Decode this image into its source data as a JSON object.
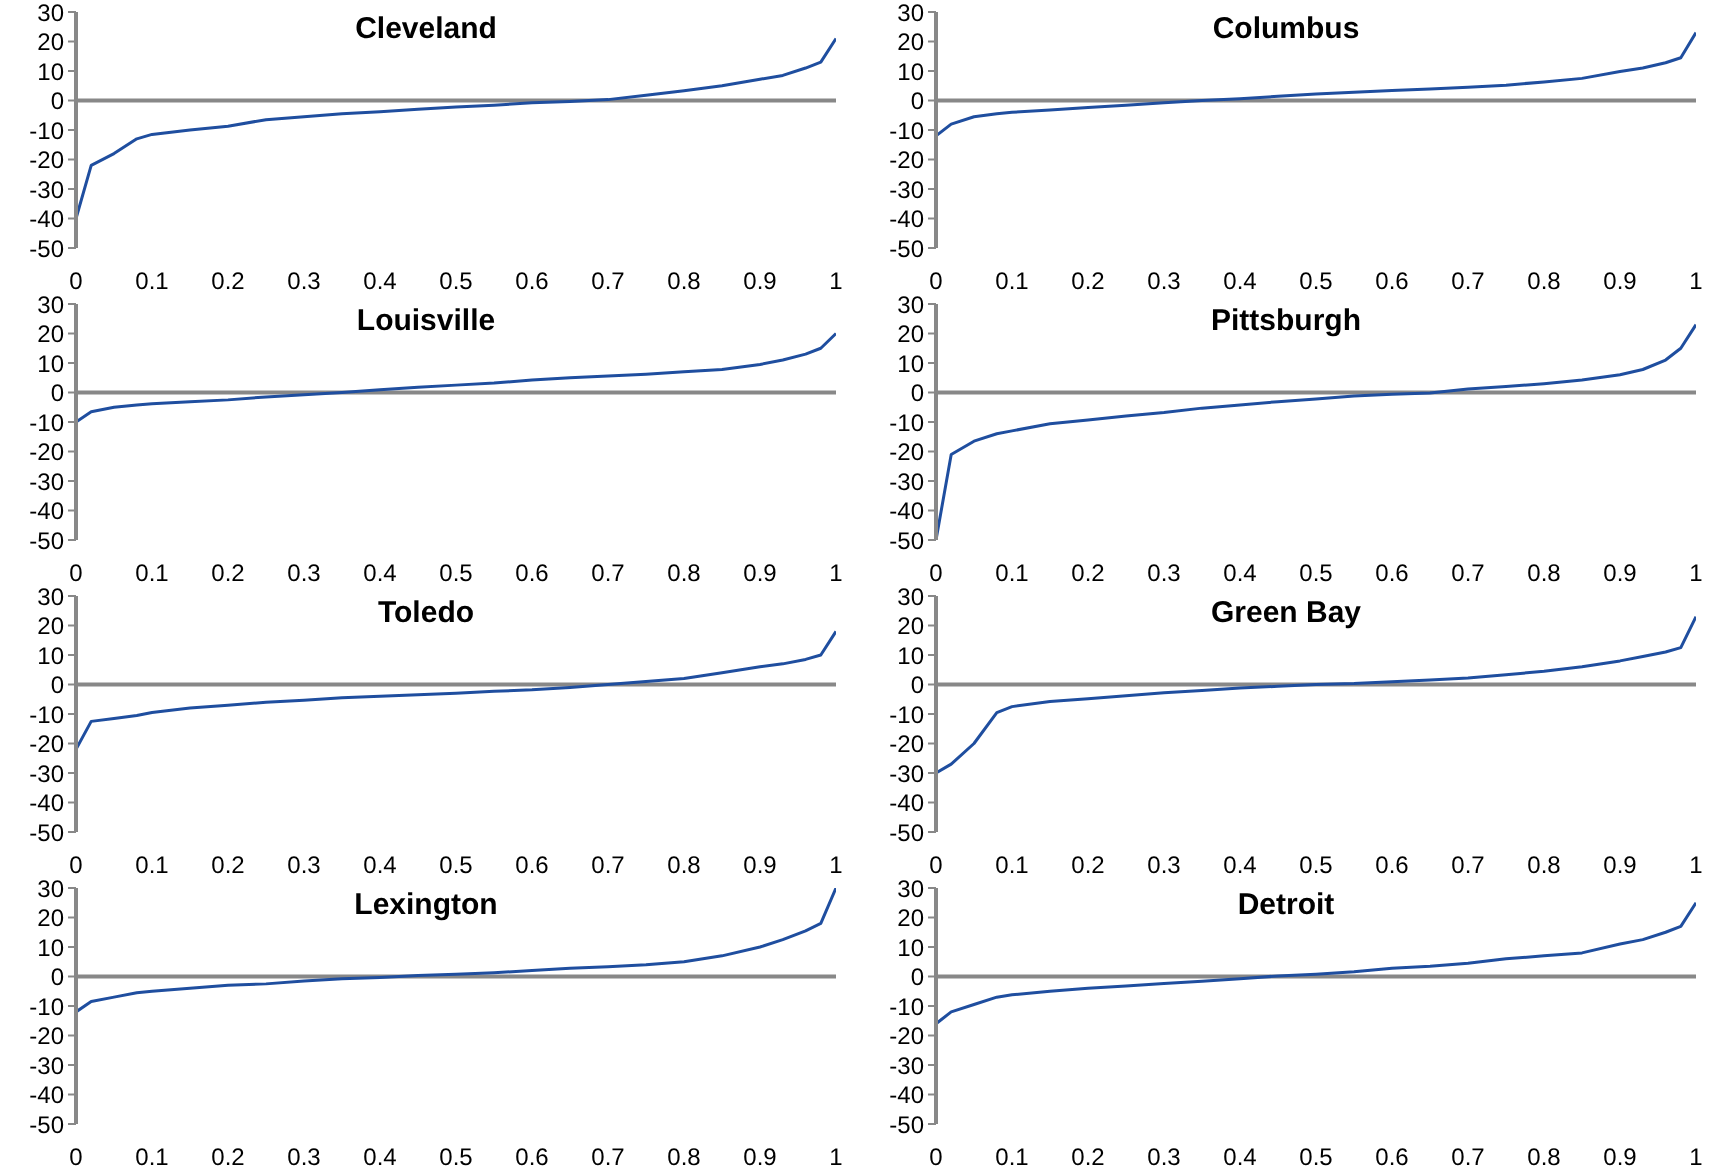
{
  "chart_data": [
    {
      "type": "line",
      "title": "Cleveland",
      "x": [
        0,
        0.02,
        0.05,
        0.08,
        0.1,
        0.15,
        0.2,
        0.25,
        0.3,
        0.35,
        0.4,
        0.45,
        0.5,
        0.55,
        0.6,
        0.65,
        0.7,
        0.75,
        0.8,
        0.85,
        0.9,
        0.93,
        0.96,
        0.98,
        1
      ],
      "values": [
        -40,
        -22,
        -18,
        -13,
        -11.5,
        -10,
        -8.7,
        -6.5,
        -5.5,
        -4.5,
        -3.8,
        -3,
        -2.2,
        -1.6,
        -0.8,
        -0.3,
        0.3,
        1.8,
        3.3,
        5,
        7.2,
        8.5,
        11,
        13,
        21
      ],
      "color": "#1f4e9f",
      "xlim": [
        0,
        1
      ],
      "ylim": [
        -50,
        30
      ],
      "xticks": [
        0,
        0.1,
        0.2,
        0.3,
        0.4,
        0.5,
        0.6,
        0.7,
        0.8,
        0.9,
        1
      ],
      "yticks": [
        -50,
        -40,
        -30,
        -20,
        -10,
        0,
        10,
        20,
        30
      ]
    },
    {
      "type": "line",
      "title": "Columbus",
      "x": [
        0,
        0.02,
        0.05,
        0.08,
        0.1,
        0.15,
        0.2,
        0.25,
        0.3,
        0.35,
        0.4,
        0.45,
        0.5,
        0.55,
        0.6,
        0.65,
        0.7,
        0.75,
        0.8,
        0.85,
        0.9,
        0.93,
        0.96,
        0.98,
        1
      ],
      "values": [
        -12,
        -8,
        -5.5,
        -4.5,
        -4,
        -3.2,
        -2.4,
        -1.6,
        -0.8,
        0,
        0.6,
        1.4,
        2.2,
        2.8,
        3.4,
        3.9,
        4.5,
        5.2,
        6.3,
        7.5,
        9.8,
        11,
        12.8,
        14.5,
        23
      ],
      "color": "#1f4e9f",
      "xlim": [
        0,
        1
      ],
      "ylim": [
        -50,
        30
      ],
      "xticks": [
        0,
        0.1,
        0.2,
        0.3,
        0.4,
        0.5,
        0.6,
        0.7,
        0.8,
        0.9,
        1
      ],
      "yticks": [
        -50,
        -40,
        -30,
        -20,
        -10,
        0,
        10,
        20,
        30
      ]
    },
    {
      "type": "line",
      "title": "Louisville",
      "x": [
        0,
        0.02,
        0.05,
        0.08,
        0.1,
        0.15,
        0.2,
        0.25,
        0.3,
        0.35,
        0.4,
        0.45,
        0.5,
        0.55,
        0.6,
        0.65,
        0.7,
        0.75,
        0.8,
        0.85,
        0.9,
        0.93,
        0.96,
        0.98,
        1
      ],
      "values": [
        -10,
        -6.5,
        -5,
        -4.2,
        -3.8,
        -3.1,
        -2.5,
        -1.5,
        -0.8,
        0,
        0.9,
        1.8,
        2.5,
        3.2,
        4.2,
        5,
        5.6,
        6.2,
        7,
        7.8,
        9.5,
        11,
        13,
        15,
        20
      ],
      "color": "#1f4e9f",
      "xlim": [
        0,
        1
      ],
      "ylim": [
        -50,
        30
      ],
      "xticks": [
        0,
        0.1,
        0.2,
        0.3,
        0.4,
        0.5,
        0.6,
        0.7,
        0.8,
        0.9,
        1
      ],
      "yticks": [
        -50,
        -40,
        -30,
        -20,
        -10,
        0,
        10,
        20,
        30
      ]
    },
    {
      "type": "line",
      "title": "Pittsburgh",
      "x": [
        0,
        0.02,
        0.05,
        0.08,
        0.1,
        0.15,
        0.2,
        0.25,
        0.3,
        0.35,
        0.4,
        0.45,
        0.5,
        0.55,
        0.6,
        0.65,
        0.7,
        0.75,
        0.8,
        0.85,
        0.9,
        0.93,
        0.96,
        0.98,
        1
      ],
      "values": [
        -50,
        -21,
        -16.5,
        -14,
        -13,
        -10.6,
        -9.3,
        -8,
        -6.8,
        -5.3,
        -4.2,
        -3.1,
        -2.2,
        -1.2,
        -0.6,
        -0.2,
        1.2,
        2,
        3,
        4.2,
        6,
        7.8,
        11,
        15,
        23
      ],
      "color": "#1f4e9f",
      "xlim": [
        0,
        1
      ],
      "ylim": [
        -50,
        30
      ],
      "xticks": [
        0,
        0.1,
        0.2,
        0.3,
        0.4,
        0.5,
        0.6,
        0.7,
        0.8,
        0.9,
        1
      ],
      "yticks": [
        -50,
        -40,
        -30,
        -20,
        -10,
        0,
        10,
        20,
        30
      ]
    },
    {
      "type": "line",
      "title": "Toledo",
      "x": [
        0,
        0.02,
        0.05,
        0.08,
        0.1,
        0.15,
        0.2,
        0.25,
        0.3,
        0.35,
        0.4,
        0.45,
        0.5,
        0.55,
        0.6,
        0.65,
        0.7,
        0.75,
        0.8,
        0.85,
        0.9,
        0.93,
        0.96,
        0.98,
        1
      ],
      "values": [
        -22,
        -12.5,
        -11.5,
        -10.5,
        -9.5,
        -8,
        -7,
        -6,
        -5.3,
        -4.5,
        -4,
        -3.5,
        -3,
        -2.3,
        -1.8,
        -1,
        0,
        1,
        2,
        4,
        6,
        7,
        8.5,
        10,
        18
      ],
      "color": "#1f4e9f",
      "xlim": [
        0,
        1
      ],
      "ylim": [
        -50,
        30
      ],
      "xticks": [
        0,
        0.1,
        0.2,
        0.3,
        0.4,
        0.5,
        0.6,
        0.7,
        0.8,
        0.9,
        1
      ],
      "yticks": [
        -50,
        -40,
        -30,
        -20,
        -10,
        0,
        10,
        20,
        30
      ]
    },
    {
      "type": "line",
      "title": "Green Bay",
      "x": [
        0,
        0.02,
        0.05,
        0.08,
        0.1,
        0.15,
        0.2,
        0.25,
        0.3,
        0.35,
        0.4,
        0.45,
        0.5,
        0.55,
        0.6,
        0.65,
        0.7,
        0.75,
        0.8,
        0.85,
        0.9,
        0.93,
        0.96,
        0.98,
        1
      ],
      "values": [
        -30,
        -27,
        -20,
        -9.5,
        -7.5,
        -5.8,
        -4.8,
        -3.8,
        -2.8,
        -2,
        -1.2,
        -0.6,
        0,
        0.3,
        0.9,
        1.5,
        2.2,
        3.3,
        4.5,
        6,
        8,
        9.5,
        11,
        12.5,
        23
      ],
      "color": "#1f4e9f",
      "xlim": [
        0,
        1
      ],
      "ylim": [
        -50,
        30
      ],
      "xticks": [
        0,
        0.1,
        0.2,
        0.3,
        0.4,
        0.5,
        0.6,
        0.7,
        0.8,
        0.9,
        1
      ],
      "yticks": [
        -50,
        -40,
        -30,
        -20,
        -10,
        0,
        10,
        20,
        30
      ]
    },
    {
      "type": "line",
      "title": "Lexington",
      "x": [
        0,
        0.02,
        0.05,
        0.08,
        0.1,
        0.15,
        0.2,
        0.25,
        0.3,
        0.35,
        0.4,
        0.45,
        0.5,
        0.55,
        0.6,
        0.65,
        0.7,
        0.75,
        0.8,
        0.85,
        0.9,
        0.93,
        0.96,
        0.98,
        1
      ],
      "values": [
        -12,
        -8.5,
        -7,
        -5.5,
        -5,
        -4,
        -3,
        -2.5,
        -1.5,
        -0.8,
        -0.3,
        0.3,
        0.8,
        1.3,
        2,
        2.8,
        3.3,
        4,
        5,
        7,
        10,
        12.5,
        15.5,
        18,
        30
      ],
      "color": "#1f4e9f",
      "xlim": [
        0,
        1
      ],
      "ylim": [
        -50,
        30
      ],
      "xticks": [
        0,
        0.1,
        0.2,
        0.3,
        0.4,
        0.5,
        0.6,
        0.7,
        0.8,
        0.9,
        1
      ],
      "yticks": [
        -50,
        -40,
        -30,
        -20,
        -10,
        0,
        10,
        20,
        30
      ]
    },
    {
      "type": "line",
      "title": "Detroit",
      "x": [
        0,
        0.02,
        0.05,
        0.08,
        0.1,
        0.15,
        0.2,
        0.25,
        0.3,
        0.35,
        0.4,
        0.45,
        0.5,
        0.55,
        0.6,
        0.65,
        0.7,
        0.75,
        0.8,
        0.85,
        0.9,
        0.93,
        0.96,
        0.98,
        1
      ],
      "values": [
        -16,
        -12,
        -9.5,
        -7,
        -6.2,
        -5,
        -4,
        -3.2,
        -2.4,
        -1.6,
        -0.8,
        0.2,
        0.8,
        1.6,
        2.8,
        3.5,
        4.5,
        6,
        7,
        8,
        11,
        12.5,
        15,
        17,
        25
      ],
      "color": "#1f4e9f",
      "xlim": [
        0,
        1
      ],
      "ylim": [
        -50,
        30
      ],
      "xticks": [
        0,
        0.1,
        0.2,
        0.3,
        0.4,
        0.5,
        0.6,
        0.7,
        0.8,
        0.9,
        1
      ],
      "yticks": [
        -50,
        -40,
        -30,
        -20,
        -10,
        0,
        10,
        20,
        30
      ]
    }
  ]
}
